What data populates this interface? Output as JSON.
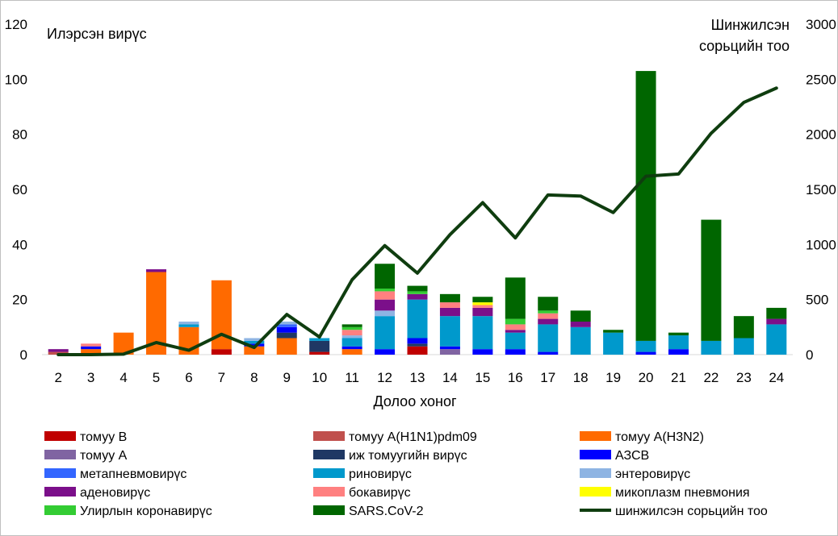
{
  "chart_data": {
    "type": "bar",
    "stacked": true,
    "categories": [
      "2",
      "3",
      "4",
      "5",
      "6",
      "7",
      "8",
      "9",
      "10",
      "11",
      "12",
      "13",
      "14",
      "15",
      "16",
      "17",
      "18",
      "19",
      "20",
      "21",
      "22",
      "23",
      "24"
    ],
    "xlabel": "Долоо хоног",
    "ylabel": "Илэрсэн вирүс",
    "y2label_lines": [
      "Шинжилсэн",
      "сорьцийн тоо"
    ],
    "ylim": [
      0,
      120
    ],
    "y_ticks": [
      0,
      20,
      40,
      60,
      80,
      100,
      120
    ],
    "y2lim": [
      0,
      3000
    ],
    "y2_ticks": [
      0,
      500,
      1000,
      1500,
      2000,
      2500,
      3000
    ],
    "legend_position": "bottom",
    "series": [
      {
        "name": "томуу В",
        "color": "#c00000",
        "values": [
          0,
          0,
          0,
          0,
          0,
          2,
          0,
          0,
          1,
          0,
          0,
          3,
          0,
          0,
          0,
          0,
          0,
          0,
          0,
          0,
          0,
          0,
          0
        ]
      },
      {
        "name": "томуу А(H1N1)pdm09",
        "color": "#c0504d",
        "values": [
          1,
          0,
          0,
          0,
          0,
          0,
          0,
          0,
          0,
          0,
          0,
          0,
          0,
          0,
          0,
          0,
          0,
          0,
          0,
          0,
          0,
          0,
          0
        ]
      },
      {
        "name": "томуу А(H3N2)",
        "color": "#ff6a00",
        "values": [
          0,
          2,
          8,
          30,
          10,
          25,
          3,
          6,
          0,
          2,
          0,
          0,
          0,
          0,
          0,
          0,
          0,
          0,
          0,
          0,
          0,
          0,
          0
        ]
      },
      {
        "name": "томуу А",
        "color": "#8064a2",
        "values": [
          0,
          0,
          0,
          0,
          0,
          0,
          0,
          0,
          0,
          0,
          0,
          0,
          2,
          0,
          0,
          0,
          0,
          0,
          0,
          0,
          0,
          0,
          0
        ]
      },
      {
        "name": "иж томуугийн вирүс",
        "color": "#1f3864",
        "values": [
          0,
          0,
          0,
          0,
          0,
          0,
          0,
          2,
          4,
          0,
          0,
          1,
          0,
          0,
          0,
          0,
          0,
          0,
          0,
          0,
          0,
          0,
          0
        ]
      },
      {
        "name": "АЗСВ",
        "color": "#0000ff",
        "values": [
          0,
          1,
          0,
          0,
          0,
          0,
          1,
          2,
          0,
          1,
          2,
          2,
          1,
          2,
          2,
          1,
          0,
          0,
          1,
          2,
          0,
          0,
          0
        ]
      },
      {
        "name": "метапневмовирүс",
        "color": "#3366ff",
        "values": [
          0,
          0,
          0,
          0,
          0,
          0,
          0,
          1,
          0,
          0,
          0,
          0,
          0,
          0,
          0,
          0,
          0,
          0,
          0,
          0,
          0,
          0,
          0
        ]
      },
      {
        "name": "риновирүс",
        "color": "#0099cc",
        "values": [
          0,
          0,
          0,
          0,
          1,
          0,
          1,
          0,
          1,
          3,
          12,
          14,
          11,
          12,
          6,
          10,
          10,
          8,
          4,
          5,
          5,
          6,
          11
        ]
      },
      {
        "name": "энтеровирүс",
        "color": "#8eb4e3",
        "values": [
          0,
          0,
          0,
          0,
          1,
          0,
          1,
          1,
          0,
          1,
          2,
          0,
          0,
          0,
          0,
          0,
          0,
          0,
          0,
          0,
          0,
          0,
          0
        ]
      },
      {
        "name": "аденовирүс",
        "color": "#7b0f8a",
        "values": [
          1,
          0,
          0,
          1,
          0,
          0,
          0,
          0,
          0,
          0,
          4,
          2,
          3,
          3,
          1,
          2,
          2,
          0,
          0,
          0,
          0,
          0,
          2
        ]
      },
      {
        "name": "бокавирүс",
        "color": "#ff8080",
        "values": [
          0,
          1,
          0,
          0,
          0,
          0,
          0,
          0,
          0,
          2,
          3,
          0,
          2,
          1,
          2,
          2,
          0,
          0,
          0,
          0,
          0,
          0,
          0
        ]
      },
      {
        "name": "микоплазм пневмония",
        "color": "#ffff00",
        "values": [
          0,
          0,
          0,
          0,
          0,
          0,
          0,
          0,
          0,
          0,
          0,
          0,
          0,
          1,
          0,
          0,
          0,
          0,
          0,
          0,
          0,
          0,
          0
        ]
      },
      {
        "name": "Улирлын коронавирүс",
        "color": "#33cc33",
        "values": [
          0,
          0,
          0,
          0,
          0,
          0,
          0,
          0,
          0,
          1,
          1,
          1,
          0,
          0,
          2,
          1,
          0,
          0,
          0,
          0,
          0,
          0,
          0
        ]
      },
      {
        "name": "SARS.CoV-2",
        "color": "#006600",
        "values": [
          0,
          0,
          0,
          0,
          0,
          0,
          0,
          0,
          0,
          1,
          9,
          2,
          3,
          2,
          15,
          5,
          4,
          1,
          98,
          1,
          44,
          8,
          4
        ]
      }
    ],
    "line_series": {
      "name": "шинжилсэн сорьцийн тоо",
      "color": "#0f3d0f",
      "axis": "right",
      "values": [
        0,
        0,
        5,
        110,
        40,
        185,
        65,
        365,
        160,
        680,
        990,
        740,
        1090,
        1380,
        1060,
        1450,
        1440,
        1290,
        1620,
        1640,
        2010,
        2290,
        2420
      ]
    }
  }
}
